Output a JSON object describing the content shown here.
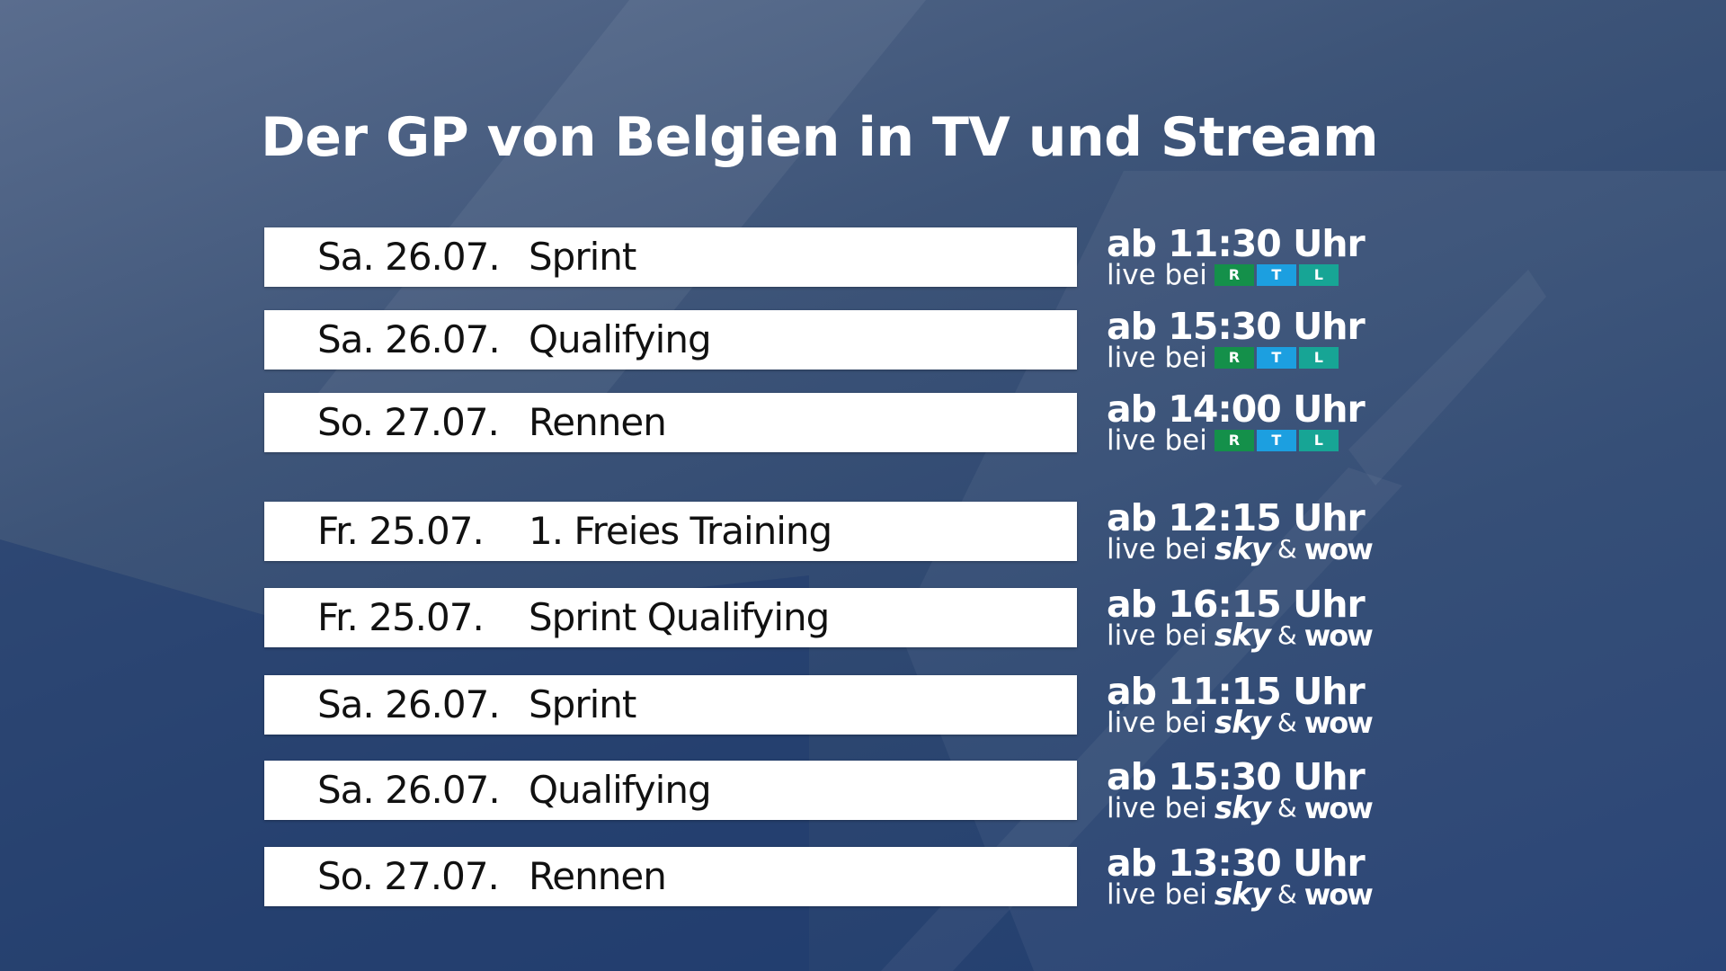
{
  "title": "Der GP von Belgien in TV und Stream",
  "rows": [
    {
      "date": "Sa. 26.07.",
      "session": "Sprint",
      "time": "ab 11:30 Uhr",
      "live": "live bei",
      "logo": [
        "R",
        "T",
        "L"
      ]
    },
    {
      "date": "Sa. 26.07.",
      "session": "Qualifying",
      "time": "ab 15:30 Uhr",
      "live": "live bei",
      "logo": [
        "R",
        "T",
        "L"
      ]
    },
    {
      "date": "So. 27.07.",
      "session": "Rennen",
      "time": "ab 14:00 Uhr",
      "live": "live bei",
      "logo": [
        "R",
        "T",
        "L"
      ]
    },
    {
      "date": "Fr. 25.07.",
      "session": "1. Freies Training",
      "time": "ab 12:15 Uhr",
      "live": "live bei",
      "logo": [
        "sky",
        "&",
        "wow"
      ]
    },
    {
      "date": "Fr. 25.07.",
      "session": "Sprint Qualifying",
      "time": "ab 16:15 Uhr",
      "live": "live bei",
      "logo": [
        "sky",
        "&",
        "wow"
      ]
    },
    {
      "date": "Sa. 26.07.",
      "session": "Sprint",
      "time": "ab 11:15 Uhr",
      "live": "live bei",
      "logo": [
        "sky",
        "&",
        "wow"
      ]
    },
    {
      "date": "Sa. 26.07.",
      "session": "Qualifying",
      "time": "ab 15:30 Uhr",
      "live": "live bei",
      "logo": [
        "sky",
        "&",
        "wow"
      ]
    },
    {
      "date": "So. 27.07.",
      "session": "Rennen",
      "time": "ab 13:30 Uhr",
      "live": "live bei",
      "logo": [
        "sky",
        "&",
        "wow"
      ]
    }
  ]
}
